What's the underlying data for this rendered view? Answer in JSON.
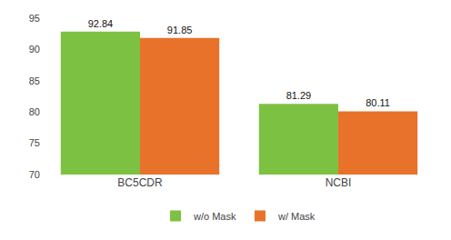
{
  "chart_data": {
    "type": "bar",
    "categories": [
      "BC5CDR",
      "NCBI"
    ],
    "series": [
      {
        "name": "w/o Mask",
        "color": "#7DC143",
        "values": [
          92.84,
          81.29
        ]
      },
      {
        "name": "w/ Mask",
        "color": "#E8722A",
        "values": [
          91.85,
          80.11
        ]
      }
    ],
    "ylim": [
      70,
      95
    ],
    "yticks": [
      70,
      75,
      80,
      85,
      90,
      95
    ],
    "grid": false,
    "legend": "bottom",
    "data_labels": true
  }
}
